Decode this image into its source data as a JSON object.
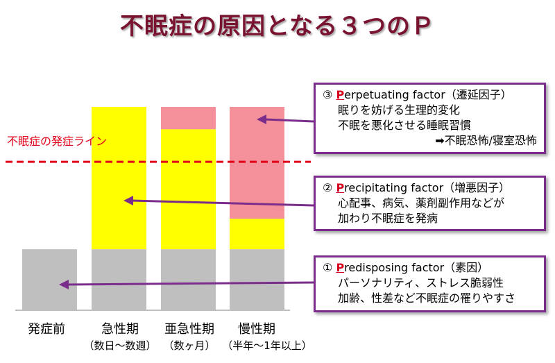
{
  "title": "不眠症の原因となる３つのＰ",
  "chart_data": {
    "type": "bar",
    "stacked": true,
    "categories": [
      "発症前",
      "急性期",
      "亜急性期",
      "慢性期"
    ],
    "category_notes": [
      "",
      "（数日～数週）",
      "（数ヶ月）",
      "（半年～1年以上）"
    ],
    "ylim": [
      0,
      100
    ],
    "series": [
      {
        "key": "predisposing",
        "color": "#bfbfbf",
        "values": [
          30,
          30,
          30,
          30
        ]
      },
      {
        "key": "precipitating",
        "color": "#ffff00",
        "values": [
          0,
          70,
          59,
          15
        ]
      },
      {
        "key": "perpetuating",
        "color": "#f4909a",
        "values": [
          0,
          0,
          11,
          55
        ]
      }
    ],
    "threshold": {
      "label": "不眠症の発症ライン",
      "value": 73,
      "color": "#e0001a"
    },
    "annotations": [
      {
        "key": "perpetuating",
        "marker": "③",
        "letter": "P",
        "name_rest": "erpetuating factor（遷延因子）",
        "lines": [
          "眠りを妨げる生理的変化",
          "不眠を悪化させる睡眠習慣",
          "➡不眠恐怖/寝室恐怖"
        ]
      },
      {
        "key": "precipitating",
        "marker": "②",
        "letter": "P",
        "name_rest": "recipitating factor（増悪因子）",
        "lines": [
          "心配事、病気、薬剤副作用などが",
          "加わり不眠症を発病"
        ]
      },
      {
        "key": "predisposing",
        "marker": "①",
        "letter": "P",
        "name_rest": "redisposing factor（素因）",
        "lines": [
          "パーソナリティ、ストレス脆弱性",
          "加齢、性差など不眠症の罹りやすさ"
        ]
      }
    ],
    "arrow_color": "#7b2d8b"
  }
}
